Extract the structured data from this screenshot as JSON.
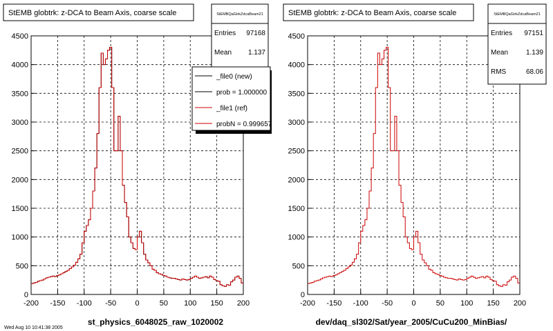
{
  "colors": {
    "new": "#000000",
    "ref": "#cc0000",
    "grid": "#000000",
    "background": "#ffffff"
  },
  "footer_text": "Wed Aug 10 10:41:38 2005",
  "chart_data": [
    {
      "type": "histogram",
      "title": "StEMB globtrk: z-DCA to Beam Axis, coarse scale",
      "xlabel": "st_physics_6048025_raw_1020002",
      "ylabel": "",
      "xlim": [
        -200,
        200
      ],
      "ylim": [
        0,
        4500
      ],
      "grid": true,
      "x_ticks": [
        "-200",
        "-150",
        "-100",
        "-50",
        "0",
        "50",
        "100",
        "150",
        "200"
      ],
      "y_ticks": [
        "0",
        "500",
        "1000",
        "1500",
        "2000",
        "2500",
        "3000",
        "3500",
        "4000",
        "4500"
      ],
      "stats": {
        "name": "StEMBQaGtrkZdcaBeam21",
        "entries_label": "Entries",
        "entries": "97168",
        "mean_label": "Mean",
        "mean": "1.137"
      },
      "legend": {
        "position": "top-right",
        "entries": [
          {
            "label": "_file0 (new)",
            "color": "#000000"
          },
          {
            "label": "prob = 1.000000",
            "color": "#000000"
          },
          {
            "label": "_file1 (ref)",
            "color": "#cc0000"
          },
          {
            "label": "probN = 0.999657",
            "color": "#cc0000"
          }
        ]
      },
      "bin_width": 4,
      "bin_edges_start": -200,
      "series": [
        {
          "name": "_file0 (new)",
          "color": "#000000",
          "values": [
            190,
            200,
            210,
            230,
            240,
            250,
            270,
            290,
            300,
            310,
            320,
            310,
            330,
            340,
            360,
            380,
            400,
            420,
            450,
            480,
            510,
            560,
            620,
            700,
            900,
            1100,
            1200,
            1300,
            1500,
            1800,
            2200,
            2800,
            3600,
            4200,
            4000,
            4100,
            4250,
            4300,
            3600,
            2500,
            2500,
            3100,
            2500,
            1900,
            1600,
            1350,
            1000,
            900,
            800,
            780,
            1000,
            1100,
            900,
            700,
            600,
            550,
            500,
            440,
            420,
            380,
            360,
            350,
            330,
            320,
            300,
            290,
            280,
            280,
            270,
            260,
            250,
            270,
            260,
            250,
            260,
            280,
            300,
            320,
            300,
            280,
            290,
            300,
            310,
            290,
            320,
            300,
            260,
            240,
            230,
            170,
            150,
            140,
            170,
            160,
            220,
            250,
            300,
            320,
            280,
            200
          ]
        },
        {
          "name": "_file1 (ref)",
          "color": "#cc0000",
          "values": [
            190,
            200,
            210,
            230,
            240,
            250,
            270,
            290,
            300,
            310,
            320,
            310,
            330,
            340,
            360,
            380,
            400,
            420,
            450,
            480,
            510,
            560,
            620,
            700,
            900,
            1100,
            1200,
            1300,
            1500,
            1800,
            2200,
            2800,
            3600,
            4200,
            4000,
            4100,
            4250,
            4300,
            3600,
            2500,
            2500,
            3100,
            2500,
            1900,
            1600,
            1350,
            1000,
            900,
            800,
            780,
            1000,
            1100,
            900,
            700,
            600,
            550,
            500,
            440,
            420,
            380,
            360,
            350,
            330,
            320,
            300,
            290,
            280,
            280,
            270,
            260,
            250,
            270,
            260,
            250,
            260,
            280,
            300,
            320,
            300,
            280,
            290,
            300,
            310,
            290,
            320,
            300,
            260,
            240,
            230,
            170,
            150,
            140,
            170,
            160,
            220,
            250,
            300,
            320,
            280,
            200
          ]
        }
      ]
    },
    {
      "type": "histogram",
      "title": "StEMB globtrk: z-DCA to Beam Axis, coarse scale",
      "xlabel": "dev/daq_sl302/Sat/year_2005/CuCu200_MinBias/",
      "ylabel": "",
      "xlim": [
        -200,
        200
      ],
      "ylim": [
        0,
        4500
      ],
      "grid": true,
      "x_ticks": [
        "-200",
        "-150",
        "-100",
        "-50",
        "0",
        "50",
        "100",
        "150",
        "200"
      ],
      "y_ticks": [
        "0",
        "500",
        "1000",
        "1500",
        "2000",
        "2500",
        "3000",
        "3500",
        "4000",
        "4500"
      ],
      "stats": {
        "name": "StEMBQaGtrkZdcaBeam21",
        "entries_label": "Entries",
        "entries": "97151",
        "mean_label": "Mean",
        "mean": "1.139",
        "rms_label": "RMS",
        "rms": "68.06"
      },
      "bin_width": 4,
      "bin_edges_start": -200,
      "series": [
        {
          "name": "ref",
          "color": "#cc0000",
          "values": [
            190,
            200,
            210,
            230,
            240,
            250,
            270,
            290,
            300,
            310,
            320,
            310,
            330,
            340,
            360,
            380,
            400,
            420,
            450,
            480,
            510,
            560,
            620,
            700,
            900,
            1100,
            1200,
            1300,
            1500,
            1800,
            2200,
            2800,
            3600,
            4200,
            4000,
            4100,
            4250,
            4300,
            3600,
            2500,
            2500,
            3100,
            2500,
            1900,
            1600,
            1350,
            1000,
            900,
            800,
            780,
            1000,
            1100,
            900,
            700,
            600,
            550,
            500,
            440,
            420,
            380,
            360,
            350,
            330,
            320,
            300,
            290,
            280,
            280,
            270,
            260,
            250,
            270,
            260,
            250,
            260,
            280,
            300,
            320,
            300,
            280,
            290,
            300,
            310,
            290,
            320,
            300,
            260,
            240,
            230,
            170,
            150,
            140,
            170,
            160,
            220,
            250,
            300,
            320,
            280,
            200
          ]
        }
      ]
    }
  ]
}
